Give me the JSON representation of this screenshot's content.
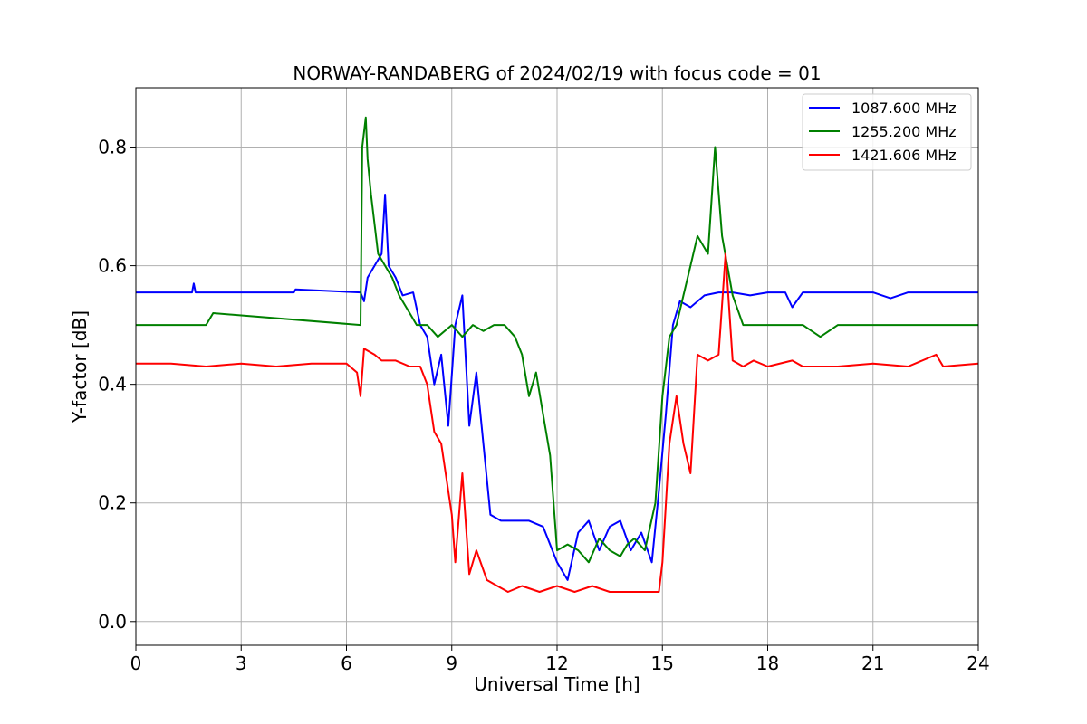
{
  "chart_data": {
    "type": "line",
    "title": "NORWAY-RANDABERG of 2024/02/19 with focus code = 01",
    "xlabel": "Universal Time [h]",
    "ylabel": "Y-factor [dB]",
    "xlim": [
      0,
      24
    ],
    "ylim": [
      -0.04,
      0.9
    ],
    "xticks": [
      0,
      3,
      6,
      9,
      12,
      15,
      18,
      21,
      24
    ],
    "yticks": [
      0.0,
      0.2,
      0.4,
      0.6,
      0.8
    ],
    "xtick_labels": [
      "0",
      "3",
      "6",
      "9",
      "12",
      "15",
      "18",
      "21",
      "24"
    ],
    "ytick_labels": [
      "0.0",
      "0.2",
      "0.4",
      "0.6",
      "0.8"
    ],
    "grid": true,
    "legend_position": "top-right",
    "series": [
      {
        "name": "1087.600 MHz",
        "color": "#0000ff",
        "x": [
          0,
          1.6,
          1.65,
          1.7,
          4.5,
          4.55,
          6.4,
          6.5,
          6.6,
          6.8,
          7.0,
          7.1,
          7.2,
          7.4,
          7.6,
          7.9,
          8.1,
          8.3,
          8.5,
          8.7,
          8.9,
          9.1,
          9.3,
          9.5,
          9.7,
          9.9,
          10.1,
          10.4,
          10.8,
          11.2,
          11.6,
          12.0,
          12.3,
          12.6,
          12.9,
          13.2,
          13.5,
          13.8,
          14.1,
          14.4,
          14.7,
          14.9,
          15.1,
          15.3,
          15.5,
          15.8,
          16.2,
          16.6,
          17.0,
          17.5,
          18.0,
          18.5,
          18.7,
          19.0,
          20.0,
          21.0,
          21.5,
          22.0,
          23.0,
          24.0
        ],
        "y": [
          0.555,
          0.555,
          0.57,
          0.555,
          0.555,
          0.56,
          0.555,
          0.54,
          0.58,
          0.6,
          0.62,
          0.72,
          0.6,
          0.58,
          0.55,
          0.555,
          0.5,
          0.48,
          0.4,
          0.45,
          0.33,
          0.5,
          0.55,
          0.33,
          0.42,
          0.3,
          0.18,
          0.17,
          0.17,
          0.17,
          0.16,
          0.1,
          0.07,
          0.15,
          0.17,
          0.12,
          0.16,
          0.17,
          0.12,
          0.15,
          0.1,
          0.22,
          0.35,
          0.5,
          0.54,
          0.53,
          0.55,
          0.555,
          0.555,
          0.55,
          0.555,
          0.555,
          0.53,
          0.555,
          0.555,
          0.555,
          0.545,
          0.555,
          0.555,
          0.555
        ]
      },
      {
        "name": "1255.200 MHz",
        "color": "#008000",
        "x": [
          0,
          2.0,
          2.2,
          6.4,
          6.45,
          6.55,
          6.6,
          6.7,
          6.9,
          7.1,
          7.3,
          7.5,
          7.8,
          8.0,
          8.3,
          8.6,
          9.0,
          9.3,
          9.6,
          9.9,
          10.2,
          10.5,
          10.8,
          11.0,
          11.2,
          11.4,
          11.6,
          11.8,
          12.0,
          12.3,
          12.6,
          12.9,
          13.2,
          13.5,
          13.8,
          14.0,
          14.2,
          14.5,
          14.8,
          15.0,
          15.2,
          15.4,
          15.6,
          15.8,
          16.0,
          16.3,
          16.5,
          16.7,
          17.0,
          17.3,
          17.6,
          18.0,
          19.0,
          19.5,
          20.0,
          21.0,
          22.0,
          23.0,
          24.0
        ],
        "y": [
          0.5,
          0.5,
          0.52,
          0.5,
          0.8,
          0.85,
          0.78,
          0.72,
          0.62,
          0.6,
          0.58,
          0.55,
          0.52,
          0.5,
          0.5,
          0.48,
          0.5,
          0.48,
          0.5,
          0.49,
          0.5,
          0.5,
          0.48,
          0.45,
          0.38,
          0.42,
          0.35,
          0.28,
          0.12,
          0.13,
          0.12,
          0.1,
          0.14,
          0.12,
          0.11,
          0.13,
          0.14,
          0.12,
          0.2,
          0.38,
          0.48,
          0.5,
          0.55,
          0.6,
          0.65,
          0.62,
          0.8,
          0.65,
          0.55,
          0.5,
          0.5,
          0.5,
          0.5,
          0.48,
          0.5,
          0.5,
          0.5,
          0.5,
          0.5
        ]
      },
      {
        "name": "1421.606 MHz",
        "color": "#ff0000",
        "x": [
          0,
          1.0,
          2.0,
          3.0,
          4.0,
          5.0,
          6.0,
          6.3,
          6.4,
          6.5,
          6.8,
          7.0,
          7.4,
          7.8,
          8.1,
          8.3,
          8.5,
          8.7,
          9.0,
          9.1,
          9.3,
          9.5,
          9.7,
          10.0,
          10.3,
          10.6,
          11.0,
          11.5,
          12.0,
          12.5,
          13.0,
          13.5,
          14.0,
          14.5,
          14.9,
          15.0,
          15.2,
          15.4,
          15.6,
          15.8,
          16.0,
          16.3,
          16.6,
          16.8,
          17.0,
          17.3,
          17.6,
          18.0,
          18.7,
          19.0,
          20.0,
          21.0,
          22.0,
          22.8,
          23.0,
          24.0
        ],
        "y": [
          0.435,
          0.435,
          0.43,
          0.435,
          0.43,
          0.435,
          0.435,
          0.42,
          0.38,
          0.46,
          0.45,
          0.44,
          0.44,
          0.43,
          0.43,
          0.4,
          0.32,
          0.3,
          0.18,
          0.1,
          0.25,
          0.08,
          0.12,
          0.07,
          0.06,
          0.05,
          0.06,
          0.05,
          0.06,
          0.05,
          0.06,
          0.05,
          0.05,
          0.05,
          0.05,
          0.1,
          0.3,
          0.38,
          0.3,
          0.25,
          0.45,
          0.44,
          0.45,
          0.62,
          0.44,
          0.43,
          0.44,
          0.43,
          0.44,
          0.43,
          0.43,
          0.435,
          0.43,
          0.45,
          0.43,
          0.435
        ]
      }
    ]
  }
}
